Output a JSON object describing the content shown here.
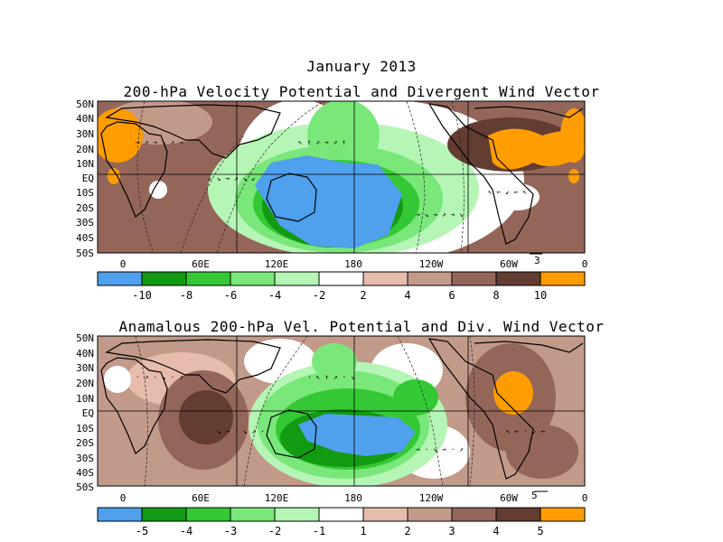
{
  "figure": {
    "month_title": "January 2013",
    "panels": [
      {
        "id": "top",
        "title": "200-hPa Velocity Potential and Divergent Wind Vector",
        "lat_labels": [
          "50N",
          "40N",
          "30N",
          "20N",
          "10N",
          "EQ",
          "10S",
          "20S",
          "30S",
          "40S",
          "50S"
        ],
        "lon_labels": [
          "0",
          "60E",
          "120E",
          "180",
          "120W",
          "60W",
          "0"
        ],
        "vector_ref": "3",
        "colorbar": {
          "labels": [
            "-10",
            "-8",
            "-6",
            "-4",
            "-2",
            "2",
            "4",
            "6",
            "8",
            "10"
          ],
          "colors": [
            "#4fa0ed",
            "#129a12",
            "#34c834",
            "#79e779",
            "#b5f5b5",
            "#ffffff",
            "#e6bcac",
            "#c29a8a",
            "#94665a",
            "#633c32",
            "#ff9d00"
          ]
        }
      },
      {
        "id": "bottom",
        "title": "Anamalous 200-hPa Vel. Potential and Div. Wind Vector",
        "lat_labels": [
          "50N",
          "40N",
          "30N",
          "20N",
          "10N",
          "EQ",
          "10S",
          "20S",
          "30S",
          "40S",
          "50S"
        ],
        "lon_labels": [
          "0",
          "60E",
          "120E",
          "180",
          "120W",
          "60W",
          "0"
        ],
        "vector_ref": "5",
        "colorbar": {
          "labels": [
            "-5",
            "-4",
            "-3",
            "-2",
            "-1",
            "1",
            "2",
            "3",
            "4",
            "5"
          ],
          "colors": [
            "#4fa0ed",
            "#129a12",
            "#34c834",
            "#79e779",
            "#b5f5b5",
            "#ffffff",
            "#e6bcac",
            "#c29a8a",
            "#94665a",
            "#633c32",
            "#ff9d00"
          ]
        }
      }
    ]
  }
}
